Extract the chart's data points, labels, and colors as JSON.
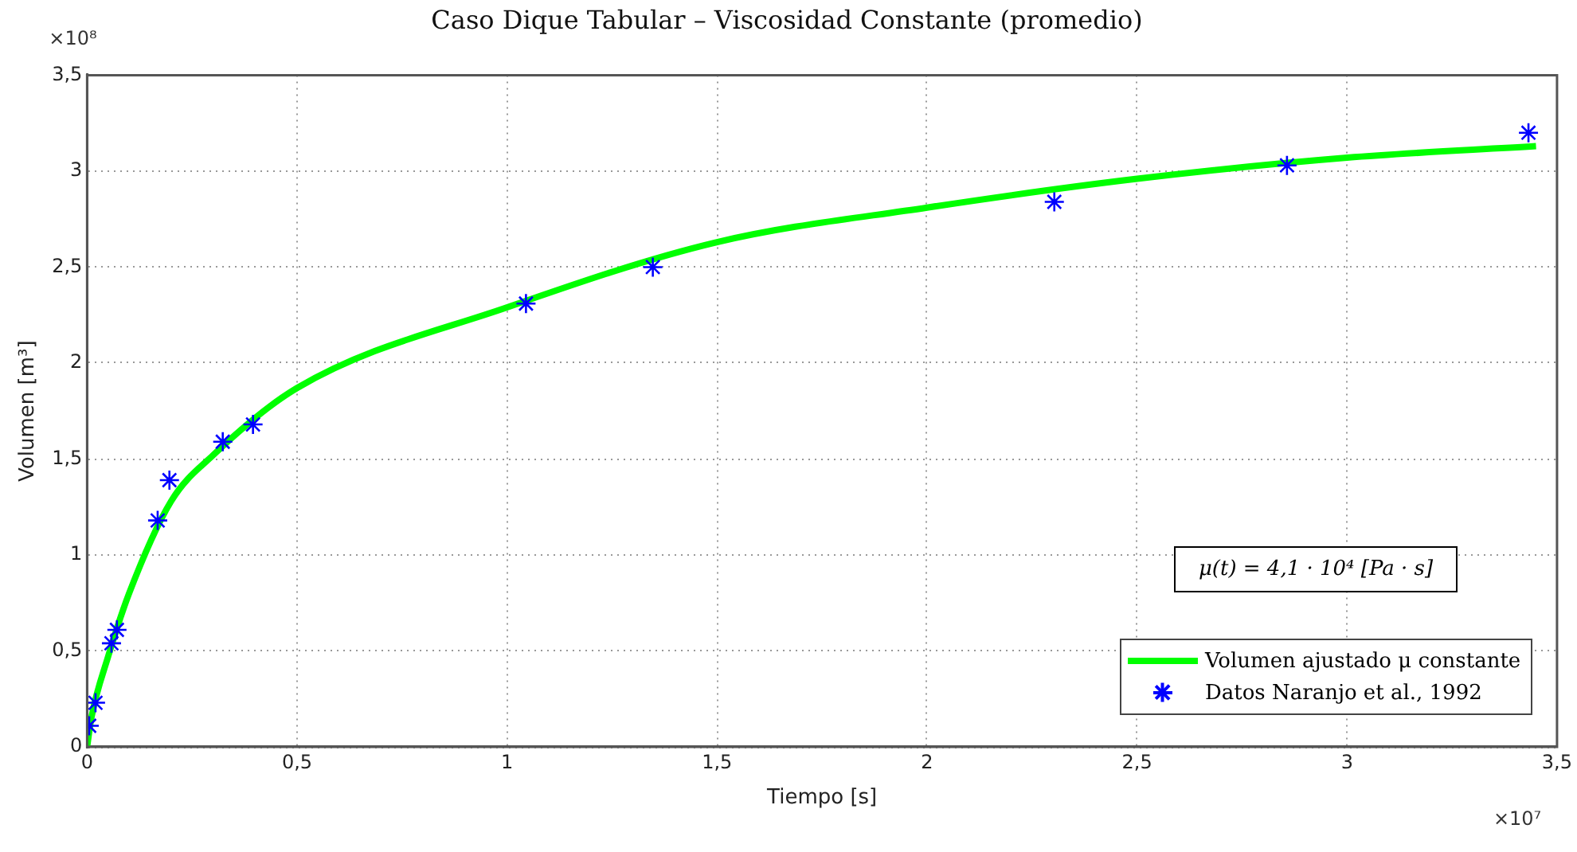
{
  "chart_data": {
    "type": "scatter",
    "title": "Caso Dique Tabular – Viscosidad Constante (promedio)",
    "xlabel": "Tiempo [s]",
    "ylabel": "Volumen [m³]",
    "annotations": [
      "μ(t) = 4,1 · 10⁴ [Pa · s]",
      "×10⁸",
      "×10⁷"
    ],
    "xlim": [
      0,
      3.5
    ],
    "ylim": [
      0,
      3.5
    ],
    "xticks": [
      0,
      {
        "value": 0.5,
        "label": "0,5"
      },
      1,
      {
        "value": 1.5,
        "label": "1,5"
      },
      2,
      {
        "value": 2.5,
        "label": "2,5"
      },
      3,
      {
        "value": 3.5,
        "label": "3,5"
      }
    ],
    "yticks": [
      0,
      {
        "value": 0.5,
        "label": "0,5"
      },
      1,
      {
        "value": 1.5,
        "label": "1,5"
      },
      2,
      {
        "value": 2.5,
        "label": "2,5"
      },
      3,
      {
        "value": 3.5,
        "label": "3,5"
      }
    ],
    "grid": true,
    "legend": "bottom right",
    "series": [
      {
        "name": "Volumen ajustado μ constante",
        "type": "line",
        "color": "#00ff00",
        "marker": "none",
        "line_style": "solid",
        "x": [
          0,
          0.01,
          0.05,
          0.1,
          0.2,
          0.3,
          0.5,
          1,
          1.5,
          2,
          2.5,
          3,
          3.45
        ],
        "values": [
          0,
          0.15,
          0.47,
          0.8,
          1.28,
          1.52,
          1.87,
          2.29,
          2.63,
          2.81,
          2.96,
          3.07,
          3.13
        ]
      },
      {
        "name": "Datos Naranjo et al., 1992",
        "type": "scatter",
        "color": "#0000ff",
        "marker": "cross",
        "x": [
          0.005,
          0.02,
          0.058,
          0.071,
          0.168,
          0.196,
          0.323,
          0.395,
          1.045,
          1.347,
          2.303,
          2.857,
          3.432
        ],
        "values": [
          0.11,
          0.23,
          0.54,
          0.61,
          1.18,
          1.39,
          1.59,
          1.68,
          2.31,
          2.5,
          2.84,
          3.03,
          3.2
        ]
      }
    ]
  }
}
